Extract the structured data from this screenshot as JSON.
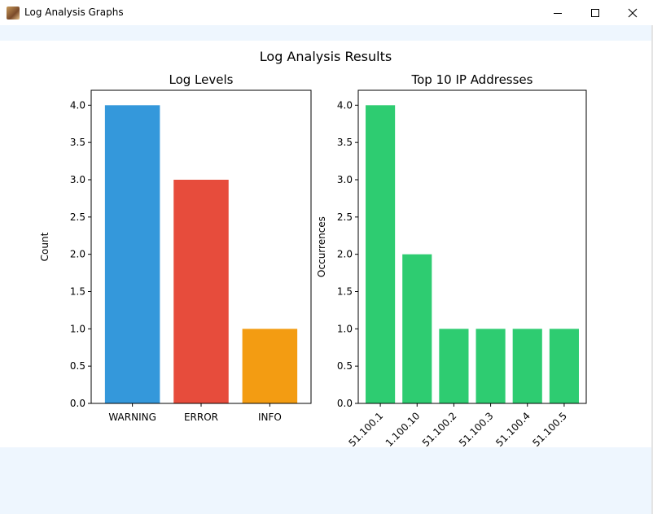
{
  "window": {
    "title": "Log Analysis Graphs",
    "icon": "app-photo-icon",
    "controls": [
      "minimize-icon",
      "maximize-icon",
      "close-icon"
    ]
  },
  "figure": {
    "suptitle": "Log Analysis Results"
  },
  "chart_data": [
    {
      "type": "bar",
      "title": "Log Levels",
      "xlabel": "",
      "ylabel": "Count",
      "categories": [
        "WARNING",
        "ERROR",
        "INFO"
      ],
      "values": [
        4,
        3,
        1
      ],
      "colors": [
        "#3498db",
        "#e74c3c",
        "#f39c12"
      ],
      "ylim": [
        0,
        4.2
      ],
      "yticks": [
        "0.0",
        "0.5",
        "1.0",
        "1.5",
        "2.0",
        "2.5",
        "3.0",
        "3.5",
        "4.0"
      ],
      "grid": false
    },
    {
      "type": "bar",
      "title": "Top 10 IP Addresses",
      "xlabel": "",
      "ylabel": "Occurrences",
      "categories": [
        "51.100.1",
        "1.100.10",
        "51.100.2",
        "51.100.3",
        "51.100.4",
        "51.100.5"
      ],
      "values": [
        4,
        2,
        1,
        1,
        1,
        1
      ],
      "colors": [
        "#2ecc71"
      ],
      "ylim": [
        0,
        4.2
      ],
      "yticks": [
        "0.0",
        "0.5",
        "1.0",
        "1.5",
        "2.0",
        "2.5",
        "3.0",
        "3.5",
        "4.0"
      ],
      "xtick_rotation": 45,
      "grid": false
    }
  ]
}
